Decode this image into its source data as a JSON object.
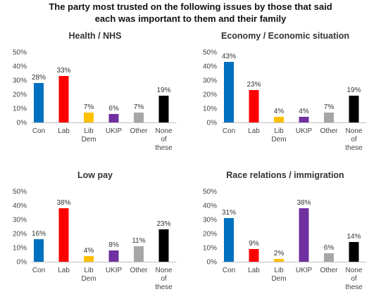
{
  "title_lines": [
    "The party most trusted on the following issues by those that said",
    "each was important to them and their family"
  ],
  "colors": {
    "Con": "#0070c0",
    "Lab": "#ff0000",
    "Lib Dem": "#ffc000",
    "UKIP": "#7030a0",
    "Other": "#a6a6a6",
    "None of these": "#000000"
  },
  "chart_data": [
    {
      "type": "bar",
      "title": "Health / NHS",
      "categories": [
        "Con",
        "Lab",
        "Lib Dem",
        "UKIP",
        "Other",
        "None of these"
      ],
      "values": [
        28,
        33,
        7,
        6,
        7,
        19
      ],
      "value_labels": [
        "28%",
        "33%",
        "7%",
        "6%",
        "7%",
        "19%"
      ],
      "yticks": [
        "0%",
        "10%",
        "20%",
        "30%",
        "40%",
        "50%"
      ],
      "ylim": [
        0,
        50
      ],
      "grid": false,
      "legend": "none"
    },
    {
      "type": "bar",
      "title": "Economy  / Economic  situation",
      "categories": [
        "Con",
        "Lab",
        "Lib Dem",
        "UKIP",
        "Other",
        "None of these"
      ],
      "values": [
        43,
        23,
        4,
        4,
        7,
        19
      ],
      "value_labels": [
        "43%",
        "23%",
        "4%",
        "4%",
        "7%",
        "19%"
      ],
      "yticks": [
        "0%",
        "10%",
        "20%",
        "30%",
        "40%",
        "50%"
      ],
      "ylim": [
        0,
        50
      ],
      "grid": false,
      "legend": "none"
    },
    {
      "type": "bar",
      "title": "Low pay",
      "categories": [
        "Con",
        "Lab",
        "Lib Dem",
        "UKIP",
        "Other",
        "None of these"
      ],
      "values": [
        16,
        38,
        4,
        8,
        11,
        23
      ],
      "value_labels": [
        "16%",
        "38%",
        "4%",
        "8%",
        "11%",
        "23%"
      ],
      "yticks": [
        "0%",
        "10%",
        "20%",
        "30%",
        "40%",
        "50%"
      ],
      "ylim": [
        0,
        50
      ],
      "grid": false,
      "legend": "none"
    },
    {
      "type": "bar",
      "title": "Race relations / immigration",
      "categories": [
        "Con",
        "Lab",
        "Lib Dem",
        "UKIP",
        "Other",
        "None of these"
      ],
      "values": [
        31,
        9,
        2,
        38,
        6,
        14
      ],
      "value_labels": [
        "31%",
        "9%",
        "2%",
        "38%",
        "6%",
        "14%"
      ],
      "yticks": [
        "0%",
        "10%",
        "20%",
        "30%",
        "40%",
        "50%"
      ],
      "ylim": [
        0,
        50
      ],
      "grid": false,
      "legend": "none"
    }
  ]
}
